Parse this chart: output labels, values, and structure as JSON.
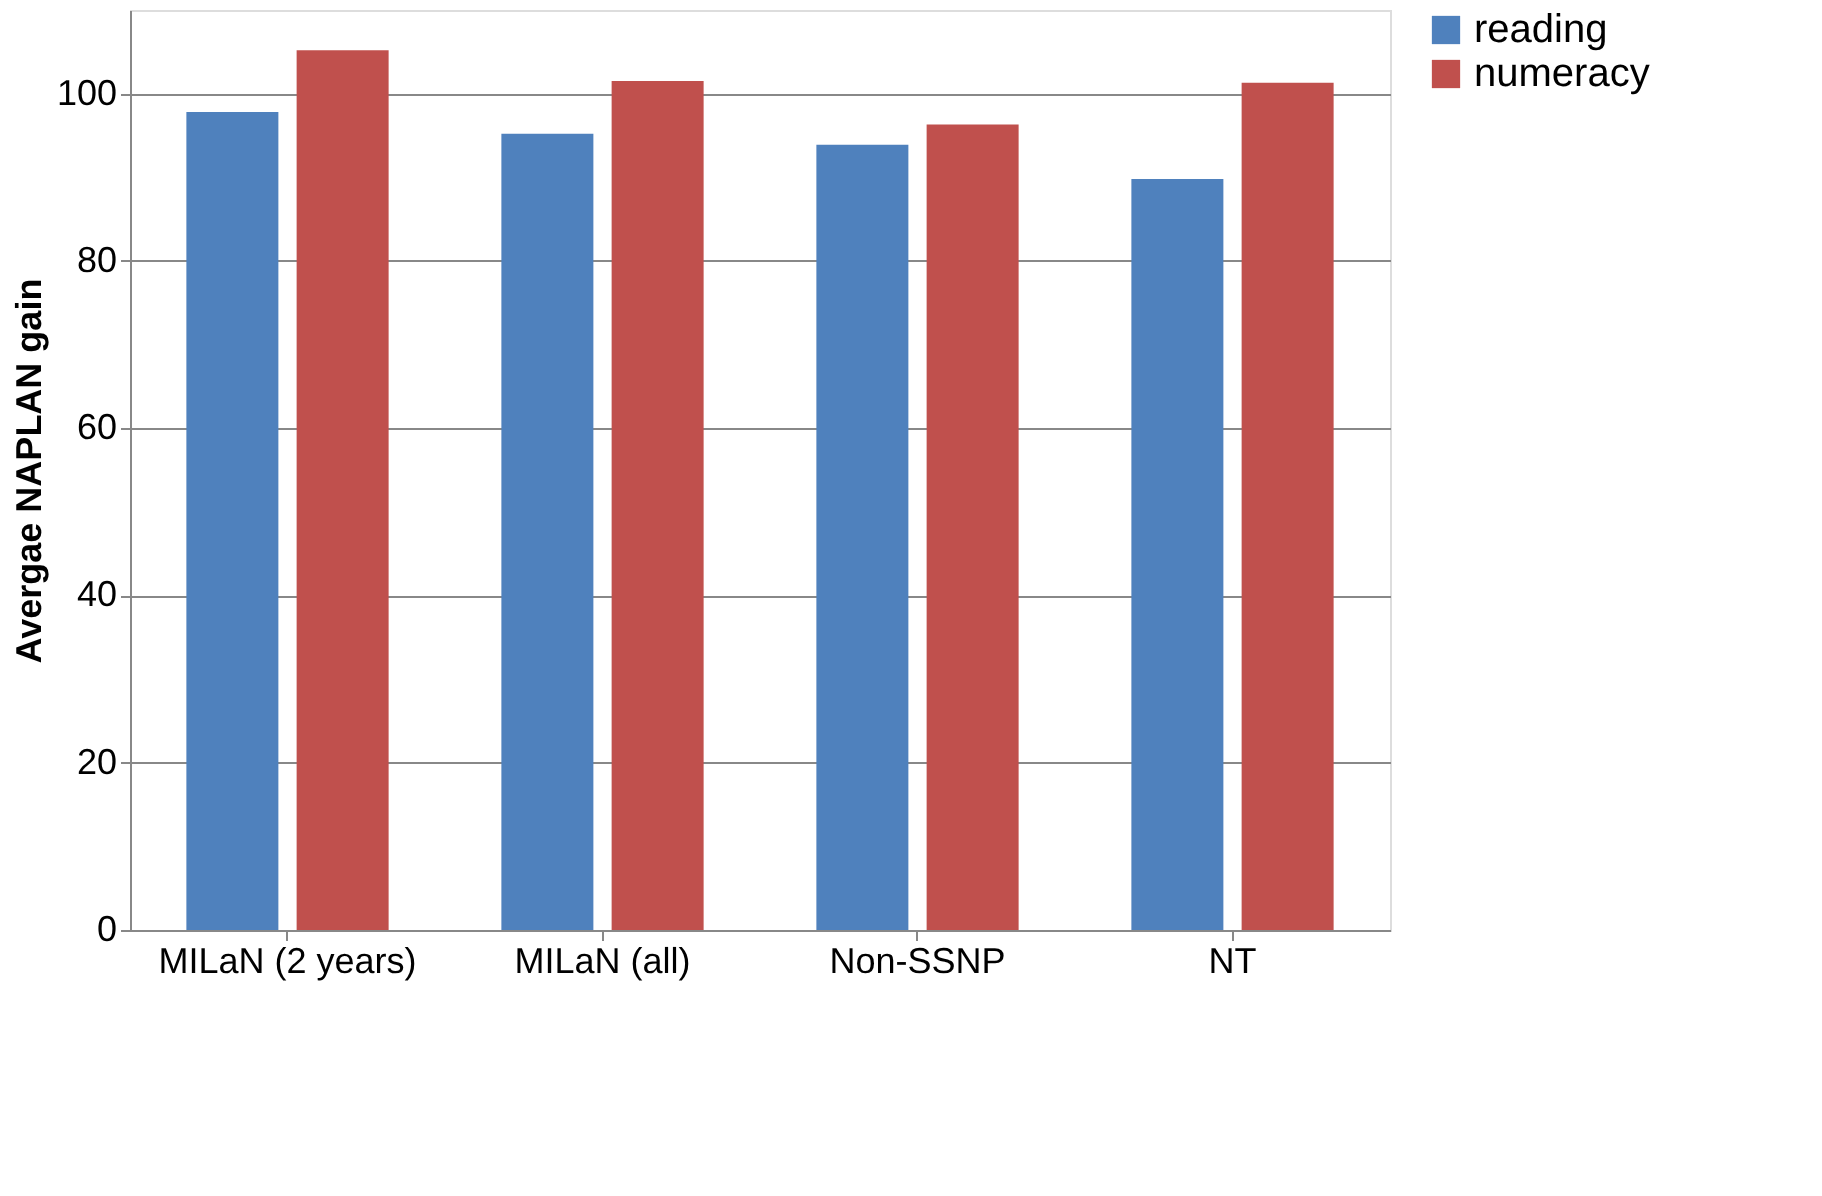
{
  "chart_data": {
    "type": "bar",
    "ylabel": "Avergae NAPLAN gain",
    "categories": [
      "MILaN (2 years)",
      "MILaN (all)",
      "Non-SSNP",
      "NT"
    ],
    "series": [
      {
        "name": "reading",
        "color": "#4f81bd",
        "values": [
          97.8,
          95.2,
          93.9,
          89.8
        ]
      },
      {
        "name": "numeracy",
        "color": "#c0504d",
        "values": [
          105.2,
          101.5,
          96.3,
          101.3
        ]
      }
    ],
    "ylim": [
      0,
      110
    ],
    "yticks": [
      0,
      20,
      40,
      60,
      80,
      100
    ],
    "grid": "y",
    "legend": "right"
  }
}
